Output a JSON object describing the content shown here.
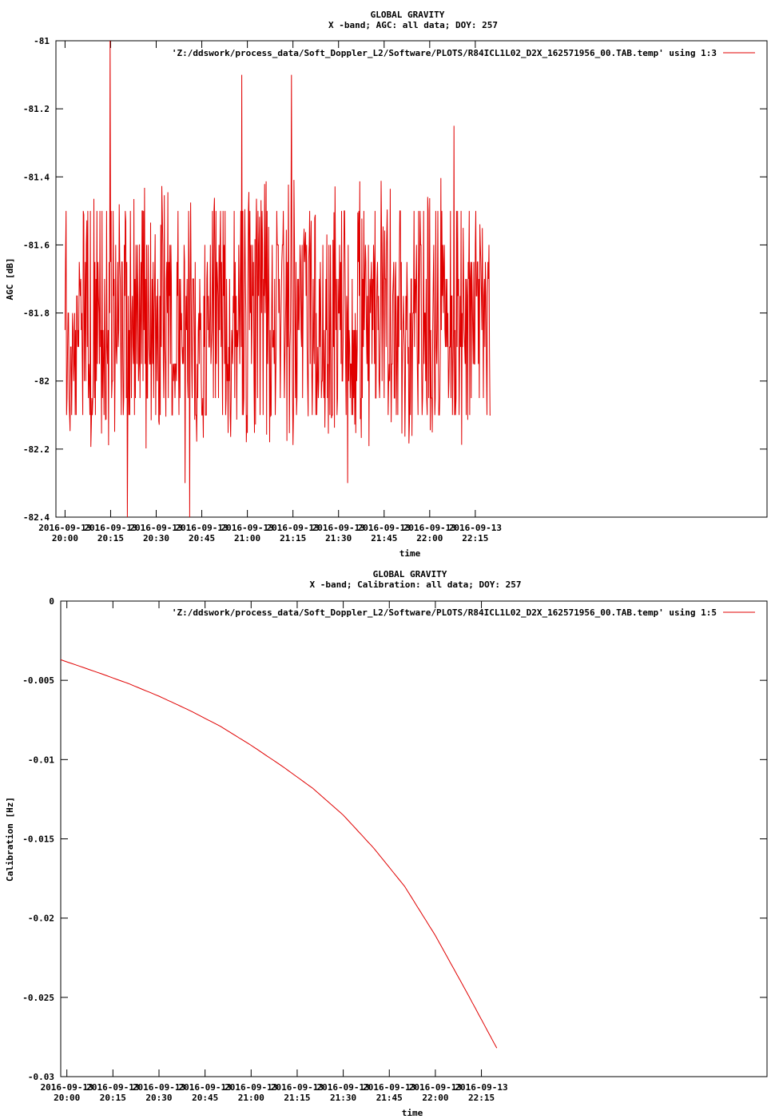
{
  "chart_data": [
    {
      "type": "line",
      "title": "GLOBAL GRAVITY",
      "subtitle": "X -band; AGC: all data; DOY: 257",
      "xlabel": "time",
      "ylabel": "AGC [dB]",
      "legend": "'Z:/ddswork/process_data/Soft_Doppler_L2/Software/PLOTS/R84ICL1L02_D2X_162571956_00.TAB.temp' using 1:3",
      "legend_position": "top-right",
      "line_color": "#e00000",
      "grid": false,
      "xlim_minutes": [
        -3,
        231
      ],
      "x_tick_minutes": [
        0,
        15,
        30,
        45,
        60,
        75,
        90,
        105,
        120,
        135
      ],
      "x_tick_labels": [
        [
          "2016-09-13",
          "20:00"
        ],
        [
          "2016-09-13",
          "20:15"
        ],
        [
          "2016-09-13",
          "20:30"
        ],
        [
          "2016-09-13",
          "20:45"
        ],
        [
          "2016-09-13",
          "21:00"
        ],
        [
          "2016-09-13",
          "21:15"
        ],
        [
          "2016-09-13",
          "21:30"
        ],
        [
          "2016-09-13",
          "21:45"
        ],
        [
          "2016-09-13",
          "22:00"
        ],
        [
          "2016-09-13",
          "22:15"
        ]
      ],
      "ylim": [
        -82.4,
        -81
      ],
      "y_ticks": [
        -81,
        -81.2,
        -81.4,
        -81.6,
        -81.8,
        -82,
        -82.2,
        -82.4
      ],
      "y_tick_labels": [
        "-81",
        "-81.2",
        "-81.4",
        "-81.6",
        "-81.8",
        "-82",
        "-82.2",
        "-82.4"
      ],
      "series_summary": {
        "mean": -81.8,
        "typical_low": -82.0,
        "typical_high": -81.55,
        "min": -82.4,
        "max": -81.0
      },
      "spikes": [
        {
          "minute": 14.8,
          "value": -81.0
        },
        {
          "minute": 20.5,
          "value": -82.4
        },
        {
          "minute": 41.0,
          "value": -82.4
        },
        {
          "minute": 39.5,
          "value": -82.3
        },
        {
          "minute": 58.2,
          "value": -81.1
        },
        {
          "minute": 74.5,
          "value": -81.1
        },
        {
          "minute": 93.0,
          "value": -82.3
        },
        {
          "minute": 128.0,
          "value": -81.25
        }
      ]
    },
    {
      "type": "line",
      "title": "GLOBAL GRAVITY",
      "subtitle": "X -band; Calibration: all data; DOY: 257",
      "xlabel": "time",
      "ylabel": "Calibration [Hz]",
      "legend": "'Z:/ddswork/process_data/Soft_Doppler_L2/Software/PLOTS/R84ICL1L02_D2X_162571956_00.TAB.temp' using 1:5",
      "legend_position": "top-right",
      "line_color": "#e00000",
      "grid": false,
      "xlim_minutes": [
        -2,
        228
      ],
      "x_tick_minutes": [
        0,
        15,
        30,
        45,
        60,
        75,
        90,
        105,
        120,
        135
      ],
      "x_tick_labels": [
        [
          "2016-09-13",
          "20:00"
        ],
        [
          "2016-09-13",
          "20:15"
        ],
        [
          "2016-09-13",
          "20:30"
        ],
        [
          "2016-09-13",
          "20:45"
        ],
        [
          "2016-09-13",
          "21:00"
        ],
        [
          "2016-09-13",
          "21:15"
        ],
        [
          "2016-09-13",
          "21:30"
        ],
        [
          "2016-09-13",
          "21:45"
        ],
        [
          "2016-09-13",
          "22:00"
        ],
        [
          "2016-09-13",
          "22:15"
        ]
      ],
      "ylim": [
        -0.03,
        0
      ],
      "y_ticks": [
        0,
        -0.005,
        -0.01,
        -0.015,
        -0.02,
        -0.025,
        -0.03
      ],
      "y_tick_labels": [
        "0",
        "-0.005",
        "-0.01",
        "-0.015",
        "-0.02",
        "-0.025",
        "-0.03"
      ],
      "x_minutes": [
        -2,
        10,
        20,
        30,
        40,
        50,
        60,
        70,
        80,
        90,
        100,
        110,
        120,
        130,
        140
      ],
      "values": [
        -0.0037,
        -0.0045,
        -0.0052,
        -0.006,
        -0.0069,
        -0.0079,
        -0.0091,
        -0.0104,
        -0.0118,
        -0.0135,
        -0.0156,
        -0.018,
        -0.0211,
        -0.0246,
        -0.0282
      ]
    }
  ]
}
